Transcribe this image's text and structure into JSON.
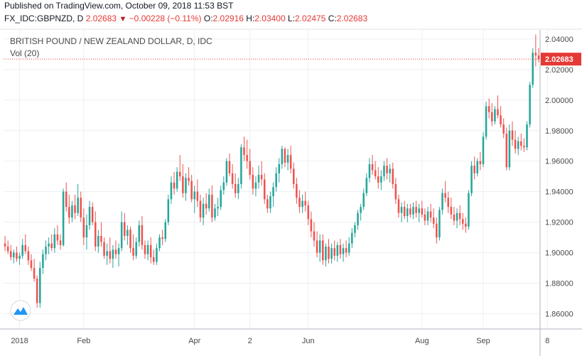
{
  "header": {
    "published": "Published on TradingView.com, October 09, 2018 11:53 BST",
    "symbol": "FX_IDC:GBPNZD, D",
    "last": "2.02683",
    "change": "−0.00228 (−0.11%)",
    "o_label": "O:",
    "o": "2.02916",
    "h_label": "H:",
    "h": "2.03400",
    "l_label": "L:",
    "l": "2.02475",
    "c_label": "C:",
    "c": "2.02683"
  },
  "legend": {
    "title": "BRITISH POUND / NEW ZEALAND DOLLAR, D, IDC",
    "volume": "Vol (20)"
  },
  "colors": {
    "up": "#26a69a",
    "down": "#ef5350",
    "grid": "#eceff2",
    "axis": "#b2b5be",
    "price_line": "#e53935"
  },
  "chart_data": {
    "type": "candlestick",
    "title": "BRITISH POUND / NEW ZEALAND DOLLAR, D, IDC",
    "ylim": [
      1.85,
      2.046
    ],
    "y_ticks": [
      2.04,
      2.02,
      2.0,
      1.98,
      1.96,
      1.94,
      1.92,
      1.9,
      1.88,
      1.86
    ],
    "y_tick_labels": [
      "2.04000",
      "2.02000",
      "2.00000",
      "1.98000",
      "1.96000",
      "1.94000",
      "1.92000",
      "1.90000",
      "1.88000",
      "1.86000"
    ],
    "x_ticks": [
      {
        "label": "2018",
        "index": 5
      },
      {
        "label": "Feb",
        "index": 27
      },
      {
        "label": "Apr",
        "index": 65
      },
      {
        "label": "2",
        "index": 84
      },
      {
        "label": "Jun",
        "index": 104
      },
      {
        "label": "Aug",
        "index": 143
      },
      {
        "label": "Sep",
        "index": 164
      },
      {
        "label": "8",
        "index": 186
      }
    ],
    "last_price": 2.02683,
    "last_price_label": "2.02683",
    "grid": true,
    "candles": [
      [
        1.906,
        1.911,
        1.901,
        1.904
      ],
      [
        1.904,
        1.908,
        1.899,
        1.901
      ],
      [
        1.901,
        1.905,
        1.895,
        1.897
      ],
      [
        1.897,
        1.902,
        1.893,
        1.9
      ],
      [
        1.9,
        1.904,
        1.894,
        1.896
      ],
      [
        1.896,
        1.9,
        1.892,
        1.898
      ],
      [
        1.898,
        1.909,
        1.896,
        1.905
      ],
      [
        1.905,
        1.912,
        1.899,
        1.901
      ],
      [
        1.901,
        1.904,
        1.892,
        1.895
      ],
      [
        1.895,
        1.899,
        1.888,
        1.89
      ],
      [
        1.89,
        1.896,
        1.881,
        1.883
      ],
      [
        1.883,
        1.885,
        1.864,
        1.867
      ],
      [
        1.867,
        1.894,
        1.864,
        1.89
      ],
      [
        1.89,
        1.902,
        1.886,
        1.899
      ],
      [
        1.899,
        1.908,
        1.895,
        1.904
      ],
      [
        1.904,
        1.91,
        1.899,
        1.906
      ],
      [
        1.906,
        1.912,
        1.901,
        1.903
      ],
      [
        1.903,
        1.916,
        1.9,
        1.912
      ],
      [
        1.912,
        1.918,
        1.905,
        1.908
      ],
      [
        1.908,
        1.912,
        1.902,
        1.905
      ],
      [
        1.905,
        1.942,
        1.904,
        1.94
      ],
      [
        1.94,
        1.946,
        1.927,
        1.93
      ],
      [
        1.93,
        1.938,
        1.919,
        1.923
      ],
      [
        1.923,
        1.934,
        1.92,
        1.931
      ],
      [
        1.931,
        1.938,
        1.922,
        1.926
      ],
      [
        1.926,
        1.945,
        1.924,
        1.936
      ],
      [
        1.936,
        1.94,
        1.92,
        1.923
      ],
      [
        1.923,
        1.929,
        1.905,
        1.91
      ],
      [
        1.91,
        1.925,
        1.902,
        1.918
      ],
      [
        1.918,
        1.934,
        1.915,
        1.93
      ],
      [
        1.93,
        1.933,
        1.918,
        1.92
      ],
      [
        1.92,
        1.927,
        1.901,
        1.904
      ],
      [
        1.904,
        1.915,
        1.9,
        1.911
      ],
      [
        1.911,
        1.92,
        1.904,
        1.907
      ],
      [
        1.907,
        1.91,
        1.896,
        1.898
      ],
      [
        1.898,
        1.906,
        1.892,
        1.901
      ],
      [
        1.901,
        1.91,
        1.893,
        1.896
      ],
      [
        1.896,
        1.905,
        1.89,
        1.902
      ],
      [
        1.902,
        1.908,
        1.896,
        1.899
      ],
      [
        1.899,
        1.906,
        1.891,
        1.903
      ],
      [
        1.903,
        1.927,
        1.901,
        1.92
      ],
      [
        1.92,
        1.926,
        1.908,
        1.911
      ],
      [
        1.911,
        1.918,
        1.905,
        1.915
      ],
      [
        1.915,
        1.917,
        1.9,
        1.903
      ],
      [
        1.903,
        1.912,
        1.895,
        1.898
      ],
      [
        1.898,
        1.91,
        1.896,
        1.907
      ],
      [
        1.907,
        1.921,
        1.904,
        1.918
      ],
      [
        1.918,
        1.924,
        1.902,
        1.905
      ],
      [
        1.905,
        1.908,
        1.896,
        1.899
      ],
      [
        1.899,
        1.908,
        1.895,
        1.905
      ],
      [
        1.905,
        1.91,
        1.893,
        1.897
      ],
      [
        1.897,
        1.902,
        1.892,
        1.894
      ],
      [
        1.894,
        1.906,
        1.892,
        1.903
      ],
      [
        1.903,
        1.912,
        1.901,
        1.91
      ],
      [
        1.91,
        1.915,
        1.905,
        1.909
      ],
      [
        1.909,
        1.922,
        1.907,
        1.92
      ],
      [
        1.92,
        1.938,
        1.918,
        1.935
      ],
      [
        1.935,
        1.95,
        1.932,
        1.946
      ],
      [
        1.946,
        1.953,
        1.938,
        1.942
      ],
      [
        1.942,
        1.956,
        1.94,
        1.953
      ],
      [
        1.953,
        1.964,
        1.947,
        1.95
      ],
      [
        1.95,
        1.958,
        1.936,
        1.939
      ],
      [
        1.939,
        1.952,
        1.934,
        1.949
      ],
      [
        1.949,
        1.956,
        1.944,
        1.947
      ],
      [
        1.947,
        1.951,
        1.933,
        1.935
      ],
      [
        1.935,
        1.944,
        1.926,
        1.94
      ],
      [
        1.94,
        1.948,
        1.93,
        1.934
      ],
      [
        1.934,
        1.938,
        1.92,
        1.923
      ],
      [
        1.923,
        1.936,
        1.918,
        1.932
      ],
      [
        1.932,
        1.939,
        1.925,
        1.929
      ],
      [
        1.929,
        1.942,
        1.927,
        1.938
      ],
      [
        1.938,
        1.944,
        1.92,
        1.923
      ],
      [
        1.923,
        1.932,
        1.921,
        1.929
      ],
      [
        1.929,
        1.936,
        1.924,
        1.93
      ],
      [
        1.93,
        1.944,
        1.928,
        1.941
      ],
      [
        1.941,
        1.95,
        1.938,
        1.946
      ],
      [
        1.946,
        1.962,
        1.944,
        1.96
      ],
      [
        1.96,
        1.965,
        1.95,
        1.952
      ],
      [
        1.952,
        1.958,
        1.942,
        1.945
      ],
      [
        1.945,
        1.952,
        1.936,
        1.939
      ],
      [
        1.939,
        1.949,
        1.935,
        1.945
      ],
      [
        1.945,
        1.971,
        1.942,
        1.969
      ],
      [
        1.969,
        1.976,
        1.96,
        1.964
      ],
      [
        1.964,
        1.974,
        1.955,
        1.96
      ],
      [
        1.96,
        1.968,
        1.948,
        1.951
      ],
      [
        1.951,
        1.956,
        1.938,
        1.942
      ],
      [
        1.942,
        1.95,
        1.937,
        1.946
      ],
      [
        1.946,
        1.957,
        1.942,
        1.951
      ],
      [
        1.951,
        1.96,
        1.944,
        1.948
      ],
      [
        1.948,
        1.952,
        1.932,
        1.935
      ],
      [
        1.935,
        1.938,
        1.926,
        1.929
      ],
      [
        1.929,
        1.94,
        1.926,
        1.937
      ],
      [
        1.937,
        1.946,
        1.93,
        1.943
      ],
      [
        1.943,
        1.956,
        1.94,
        1.952
      ],
      [
        1.952,
        1.962,
        1.946,
        1.958
      ],
      [
        1.958,
        1.97,
        1.955,
        1.968
      ],
      [
        1.968,
        1.969,
        1.956,
        1.959
      ],
      [
        1.959,
        1.968,
        1.954,
        1.964
      ],
      [
        1.964,
        1.97,
        1.952,
        1.955
      ],
      [
        1.955,
        1.959,
        1.942,
        1.945
      ],
      [
        1.945,
        1.949,
        1.932,
        1.936
      ],
      [
        1.936,
        1.941,
        1.926,
        1.93
      ],
      [
        1.93,
        1.938,
        1.926,
        1.934
      ],
      [
        1.934,
        1.94,
        1.927,
        1.931
      ],
      [
        1.931,
        1.934,
        1.918,
        1.922
      ],
      [
        1.922,
        1.927,
        1.91,
        1.914
      ],
      [
        1.914,
        1.92,
        1.904,
        1.908
      ],
      [
        1.908,
        1.914,
        1.897,
        1.9
      ],
      [
        1.9,
        1.912,
        1.894,
        1.908
      ],
      [
        1.908,
        1.912,
        1.892,
        1.895
      ],
      [
        1.895,
        1.906,
        1.891,
        1.904
      ],
      [
        1.904,
        1.909,
        1.893,
        1.896
      ],
      [
        1.896,
        1.906,
        1.893,
        1.903
      ],
      [
        1.903,
        1.908,
        1.895,
        1.898
      ],
      [
        1.898,
        1.907,
        1.894,
        1.905
      ],
      [
        1.905,
        1.909,
        1.896,
        1.899
      ],
      [
        1.899,
        1.906,
        1.894,
        1.903
      ],
      [
        1.903,
        1.908,
        1.897,
        1.9
      ],
      [
        1.9,
        1.91,
        1.898,
        1.906
      ],
      [
        1.906,
        1.916,
        1.903,
        1.913
      ],
      [
        1.913,
        1.92,
        1.91,
        1.918
      ],
      [
        1.918,
        1.928,
        1.915,
        1.926
      ],
      [
        1.926,
        1.932,
        1.921,
        1.93
      ],
      [
        1.93,
        1.942,
        1.928,
        1.939
      ],
      [
        1.939,
        1.952,
        1.937,
        1.949
      ],
      [
        1.949,
        1.962,
        1.946,
        1.958
      ],
      [
        1.958,
        1.964,
        1.951,
        1.954
      ],
      [
        1.954,
        1.96,
        1.948,
        1.95
      ],
      [
        1.95,
        1.956,
        1.942,
        1.946
      ],
      [
        1.946,
        1.954,
        1.941,
        1.95
      ],
      [
        1.95,
        1.96,
        1.947,
        1.957
      ],
      [
        1.957,
        1.962,
        1.948,
        1.952
      ],
      [
        1.952,
        1.958,
        1.946,
        1.955
      ],
      [
        1.955,
        1.959,
        1.942,
        1.945
      ],
      [
        1.945,
        1.949,
        1.932,
        1.935
      ],
      [
        1.935,
        1.938,
        1.923,
        1.926
      ],
      [
        1.926,
        1.933,
        1.92,
        1.93
      ],
      [
        1.93,
        1.934,
        1.922,
        1.924
      ],
      [
        1.924,
        1.932,
        1.92,
        1.929
      ],
      [
        1.929,
        1.932,
        1.923,
        1.925
      ],
      [
        1.925,
        1.933,
        1.922,
        1.93
      ],
      [
        1.93,
        1.934,
        1.923,
        1.926
      ],
      [
        1.926,
        1.932,
        1.92,
        1.929
      ],
      [
        1.929,
        1.934,
        1.923,
        1.925
      ],
      [
        1.925,
        1.929,
        1.918,
        1.921
      ],
      [
        1.921,
        1.93,
        1.918,
        1.927
      ],
      [
        1.927,
        1.932,
        1.92,
        1.923
      ],
      [
        1.923,
        1.929,
        1.916,
        1.919
      ],
      [
        1.919,
        1.923,
        1.906,
        1.91
      ],
      [
        1.91,
        1.93,
        1.908,
        1.928
      ],
      [
        1.928,
        1.942,
        1.925,
        1.939
      ],
      [
        1.939,
        1.947,
        1.933,
        1.936
      ],
      [
        1.936,
        1.94,
        1.926,
        1.93
      ],
      [
        1.93,
        1.936,
        1.922,
        1.925
      ],
      [
        1.925,
        1.93,
        1.918,
        1.921
      ],
      [
        1.921,
        1.929,
        1.916,
        1.926
      ],
      [
        1.926,
        1.931,
        1.918,
        1.922
      ],
      [
        1.922,
        1.926,
        1.915,
        1.919
      ],
      [
        1.919,
        1.923,
        1.913,
        1.917
      ],
      [
        1.917,
        1.941,
        1.915,
        1.939
      ],
      [
        1.939,
        1.96,
        1.937,
        1.957
      ],
      [
        1.957,
        1.963,
        1.948,
        1.952
      ],
      [
        1.952,
        1.962,
        1.95,
        1.96
      ],
      [
        1.96,
        1.966,
        1.954,
        1.958
      ],
      [
        1.958,
        1.979,
        1.956,
        1.976
      ],
      [
        1.976,
        1.999,
        1.974,
        1.996
      ],
      [
        1.996,
        2.001,
        1.988,
        1.992
      ],
      [
        1.992,
        1.998,
        1.983,
        1.986
      ],
      [
        1.986,
        1.996,
        1.984,
        1.994
      ],
      [
        1.994,
        2.003,
        1.988,
        1.99
      ],
      [
        1.99,
        1.996,
        1.982,
        1.984
      ],
      [
        1.984,
        1.988,
        1.975,
        1.978
      ],
      [
        1.978,
        1.982,
        1.954,
        1.956
      ],
      [
        1.956,
        1.984,
        1.954,
        1.98
      ],
      [
        1.98,
        1.986,
        1.97,
        1.974
      ],
      [
        1.974,
        1.98,
        1.965,
        1.968
      ],
      [
        1.968,
        1.976,
        1.964,
        1.973
      ],
      [
        1.973,
        1.978,
        1.967,
        1.97
      ],
      [
        1.97,
        1.975,
        1.966,
        1.969
      ],
      [
        1.969,
        1.986,
        1.967,
        1.984
      ],
      [
        1.984,
        2.012,
        1.982,
        2.01
      ],
      [
        2.01,
        2.034,
        2.008,
        2.031
      ],
      [
        2.031,
        2.043,
        2.022,
        2.0292
      ],
      [
        2.0292,
        2.034,
        2.0248,
        2.0268
      ]
    ]
  }
}
